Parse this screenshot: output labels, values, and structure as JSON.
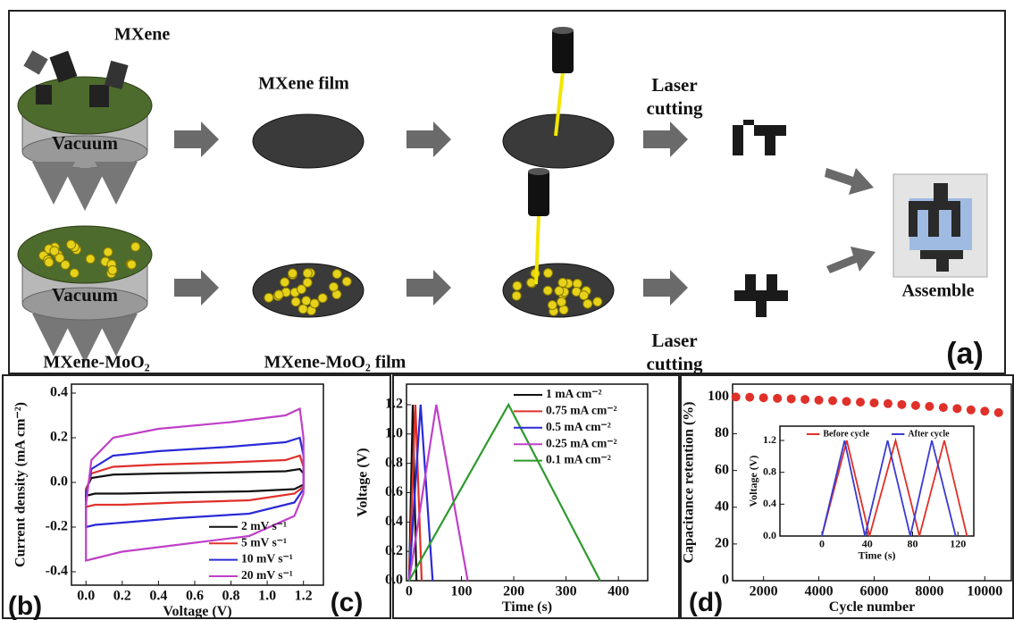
{
  "schematic": {
    "mxene": "MXene",
    "vacuum_top": "Vacuum",
    "vacuum_bottom": "Vacuum",
    "mxene_film": "MXene film",
    "laser_top": "Laser cutting",
    "laser_bottom": "Laser cutting",
    "assemble": "Assemble",
    "mxene_moo2": "MXene-MoO₂",
    "mxene_moo2_film": "MXene-MoO₂ film",
    "panel_label": "(a)"
  },
  "chart_data": [
    {
      "type": "line",
      "panel_label": "(b)",
      "x_label": "Voltage (V)",
      "y_label": "Current density (mA cm⁻²)",
      "xlim": [
        -0.08,
        1.31
      ],
      "ylim": [
        -0.46,
        0.44
      ],
      "xticks": [
        {
          "value": 0,
          "label": "0.0"
        },
        0.2,
        0.4,
        0.6,
        0.8,
        {
          "value": 1,
          "label": "1.0"
        },
        1.2
      ],
      "yticks": [
        -0.4,
        -0.2,
        {
          "value": 0,
          "label": "0.0"
        },
        0.2,
        0.4
      ],
      "legend": "lower right",
      "series": [
        {
          "name": "2 mV s⁻¹",
          "color": "#111111",
          "x": [
            0,
            0.03,
            0.15,
            0.4,
            0.8,
            1.1,
            1.18,
            1.2,
            1.2,
            1.15,
            0.9,
            0.5,
            0.2,
            0.05,
            0,
            0
          ],
          "values": [
            -0.03,
            0.02,
            0.035,
            0.04,
            0.045,
            0.05,
            0.06,
            0.04,
            -0.01,
            -0.03,
            -0.04,
            -0.045,
            -0.05,
            -0.05,
            -0.06,
            -0.03
          ]
        },
        {
          "name": "5 mV s⁻¹",
          "color": "#e0302a",
          "x": [
            0,
            0.03,
            0.15,
            0.4,
            0.8,
            1.1,
            1.18,
            1.2,
            1.2,
            1.15,
            0.9,
            0.5,
            0.2,
            0.05,
            0,
            0
          ],
          "values": [
            -0.04,
            0.04,
            0.07,
            0.08,
            0.09,
            0.1,
            0.12,
            0.07,
            -0.02,
            -0.05,
            -0.08,
            -0.09,
            -0.1,
            -0.1,
            -0.11,
            -0.04
          ]
        },
        {
          "name": "10 mV s⁻¹",
          "color": "#2a2ad8",
          "x": [
            0,
            0.03,
            0.15,
            0.4,
            0.8,
            1.1,
            1.18,
            1.2,
            1.2,
            1.15,
            0.9,
            0.5,
            0.2,
            0.05,
            0,
            0
          ],
          "values": [
            -0.06,
            0.06,
            0.12,
            0.14,
            0.16,
            0.18,
            0.2,
            0.12,
            -0.03,
            -0.09,
            -0.14,
            -0.16,
            -0.18,
            -0.19,
            -0.2,
            -0.06
          ]
        },
        {
          "name": "20 mV s⁻¹",
          "color": "#c040c8",
          "x": [
            0,
            0.03,
            0.15,
            0.4,
            0.8,
            1.1,
            1.18,
            1.2,
            1.2,
            1.15,
            0.9,
            0.5,
            0.2,
            0.05,
            0,
            0
          ],
          "values": [
            -0.1,
            0.1,
            0.2,
            0.24,
            0.27,
            0.3,
            0.33,
            0.2,
            -0.05,
            -0.15,
            -0.24,
            -0.28,
            -0.31,
            -0.34,
            -0.35,
            -0.1
          ]
        }
      ]
    },
    {
      "type": "line",
      "panel_label": "(c)",
      "x_label": "Time (s)",
      "y_label": "Voltage (V)",
      "xlim": [
        -5,
        456
      ],
      "ylim": [
        0,
        1.34
      ],
      "xticks": [
        0,
        100,
        200,
        300,
        400
      ],
      "yticks": [
        {
          "value": 0,
          "label": "0.0"
        },
        0.2,
        0.4,
        0.6,
        0.8,
        {
          "value": 1,
          "label": "1.0"
        },
        1.2
      ],
      "legend": "upper right",
      "series": [
        {
          "name": "1 mA cm⁻²",
          "color": "#111111",
          "x": [
            0,
            7,
            14
          ],
          "values": [
            0,
            1.2,
            0
          ]
        },
        {
          "name": "0.75 mA cm⁻²",
          "color": "#e0302a",
          "x": [
            0,
            12,
            24
          ],
          "values": [
            0,
            1.2,
            0
          ]
        },
        {
          "name": "0.5 mA cm⁻²",
          "color": "#2a2ad8",
          "x": [
            0,
            22,
            45
          ],
          "values": [
            0,
            1.2,
            0
          ]
        },
        {
          "name": "0.25 mA cm⁻²",
          "color": "#c040c8",
          "x": [
            0,
            52,
            112
          ],
          "values": [
            0,
            1.2,
            0
          ]
        },
        {
          "name": "0.1 mA cm⁻²",
          "color": "#2e9a2e",
          "x": [
            0,
            190,
            365
          ],
          "values": [
            0,
            1.2,
            0
          ]
        }
      ]
    },
    {
      "type": "scatter",
      "panel_label": "(d)",
      "x_label": "Cycle number",
      "y_label": "Capacitance retention (%)",
      "xlim": [
        880,
        10960
      ],
      "ylim": [
        0,
        107
      ],
      "xticks": [
        2000,
        4000,
        6000,
        8000,
        10000
      ],
      "yticks": [
        0,
        20,
        40,
        60,
        80,
        100
      ],
      "series": [
        {
          "color": "#e0302a",
          "x": [
            1000,
            1500,
            2000,
            2500,
            3000,
            3500,
            4000,
            4500,
            5000,
            5500,
            6000,
            6500,
            7000,
            7500,
            8000,
            8500,
            9000,
            9500,
            10000,
            10500
          ],
          "values": [
            100,
            99.9,
            99.6,
            99.3,
            99,
            98.7,
            98.3,
            98,
            97.6,
            97.2,
            96.8,
            96.4,
            95.9,
            95.4,
            94.9,
            94.3,
            93.7,
            93,
            92.3,
            91.5
          ]
        }
      ]
    },
    {
      "type": "line",
      "x_label": "Time (s)",
      "y_label": "Voltage (V)",
      "xlim": [
        -37,
        134
      ],
      "ylim": [
        0,
        1.38
      ],
      "xticks": [
        0,
        40,
        80,
        120
      ],
      "yticks": [
        {
          "value": 0,
          "label": "0.0"
        },
        0.4,
        0.8,
        1.2
      ],
      "legend": "upper right",
      "series": [
        {
          "name": "Before cycle",
          "color": "#e0302a",
          "x": [
            0,
            22,
            42,
            65,
            86,
            108,
            128
          ],
          "values": [
            0,
            1.2,
            0,
            1.2,
            0,
            1.2,
            0
          ]
        },
        {
          "name": "After cycle",
          "color": "#3a3ad0",
          "x": [
            0,
            20,
            38,
            58,
            78,
            97,
            118
          ],
          "values": [
            0,
            1.2,
            0,
            1.2,
            0,
            1.2,
            0
          ]
        }
      ]
    }
  ]
}
